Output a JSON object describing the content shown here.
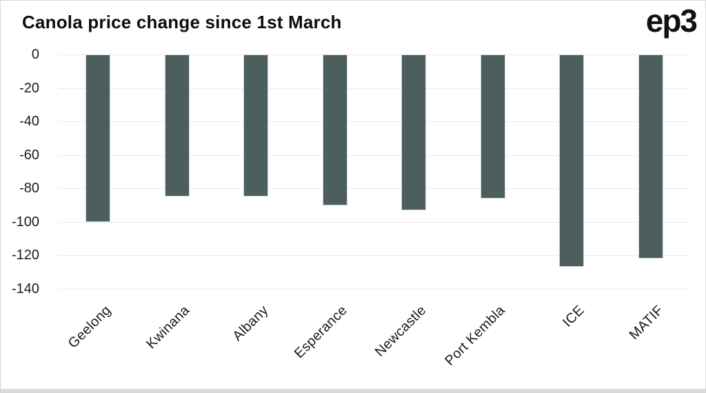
{
  "header": {
    "title": "Canola price change since 1st March",
    "logo": "ep3"
  },
  "colors": {
    "bar": "#4d5e5f",
    "bar_edge": "#cdd7d6",
    "grid": "#e9e9e9",
    "tick_text": "#1a1a1a",
    "title_text": "#0d0d0d",
    "card_border": "#d6d6d6",
    "bottom_strip": "#dcdcdc",
    "background": "#ffffff"
  },
  "chart_data": {
    "type": "bar",
    "title": "Canola price change since 1st March",
    "categories": [
      "Geelong",
      "Kwinana",
      "Albany",
      "Esperance",
      "Newcastle",
      "Port Kembla",
      "ICE",
      "MATIF"
    ],
    "values": [
      -100,
      -85,
      -85,
      -90,
      -93,
      -86,
      -127,
      -122
    ],
    "xlabel": "",
    "ylabel": "",
    "ylim": [
      -140,
      0
    ],
    "yticks": [
      0,
      -20,
      -40,
      -60,
      -80,
      -100,
      -120,
      -140
    ],
    "grid": true,
    "legend_position": "none",
    "bar_orientation": "vertical"
  }
}
